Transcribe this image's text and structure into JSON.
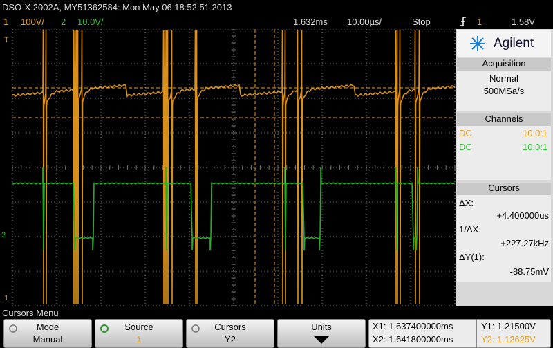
{
  "header": {
    "title": "DSO-X 2002A, MY51362584: Mon May 06 18:52:51 2013"
  },
  "status": {
    "ch1_num": "1",
    "ch1_scale": "100V/",
    "ch2_num": "2",
    "ch2_scale": "10.0V/",
    "time_pos": "1.632ms",
    "time_scale": "10.00µs/",
    "run_state": "Stop",
    "trigger_source": "1",
    "trigger_level": "1.58V"
  },
  "markers": {
    "trigger": "T",
    "ch2": "2",
    "ch1": "1"
  },
  "sidebar": {
    "brand": "Agilent",
    "acquisition": {
      "title": "Acquisition",
      "mode": "Normal",
      "rate": "500MSa/s"
    },
    "channels": {
      "title": "Channels",
      "rows": [
        {
          "coupling": "DC",
          "probe": "10.0:1"
        },
        {
          "coupling": "DC",
          "probe": "10.0:1"
        }
      ]
    },
    "cursors": {
      "title": "Cursors",
      "dx_label": "ΔX:",
      "dx": "+4.400000us",
      "inv_label": "1/ΔX:",
      "inv": "+227.27kHz",
      "dy_label": "ΔY(1):",
      "dy": "-88.75mV"
    }
  },
  "menu": {
    "title": "Cursors Menu",
    "softkeys": [
      {
        "label": "Mode",
        "value": "Manual"
      },
      {
        "label": "Source",
        "value": "1"
      },
      {
        "label": "Cursors",
        "value": "Y2"
      },
      {
        "label": "Units"
      }
    ],
    "readout": {
      "x1": "X1: 1.637400000ms",
      "x2": "X2: 1.641800000ms",
      "y1": "Y1: 1.21500V",
      "y2": "Y2: 1.12625V"
    }
  }
}
